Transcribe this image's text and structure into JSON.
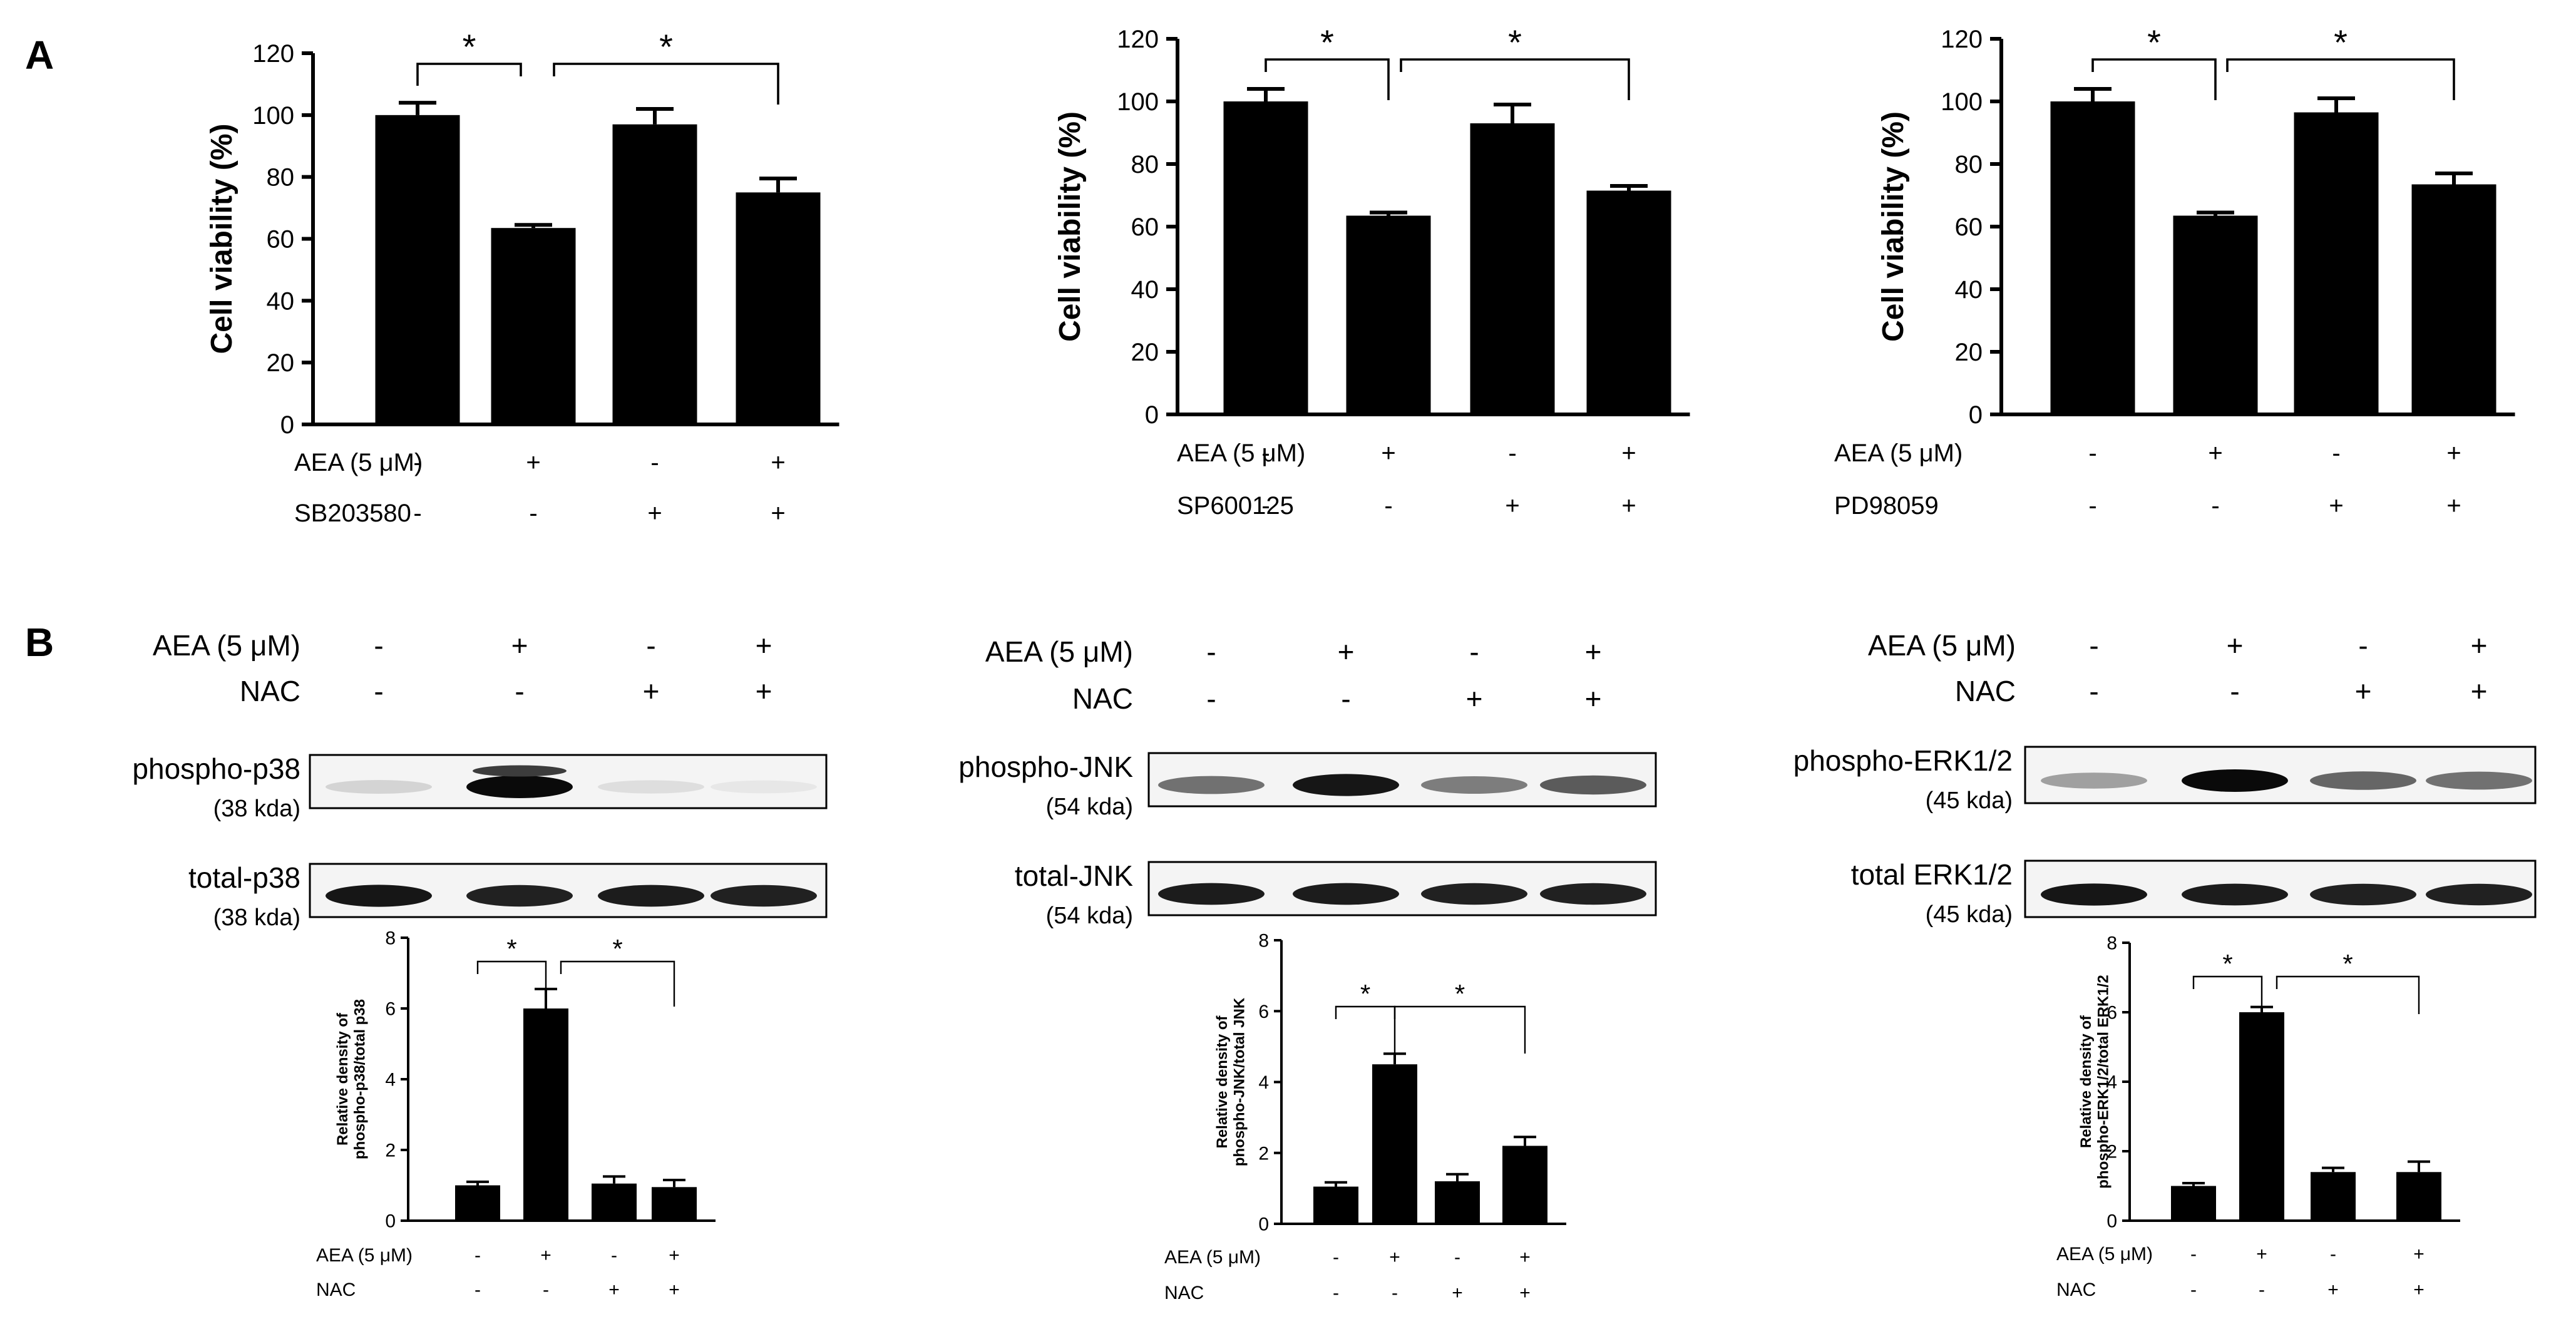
{
  "panels": {
    "A": "A",
    "B": "B"
  },
  "chart_data": [
    {
      "type": "bar",
      "ylabel": "Cell viability (%)",
      "ylim": [
        0,
        120
      ],
      "yticks": [
        "0",
        "20",
        "40",
        "60",
        "80",
        "100",
        "120"
      ],
      "values": [
        100,
        63.5,
        97,
        75
      ],
      "errors": [
        4,
        1,
        5,
        4.5
      ],
      "significance": [
        "*",
        "*"
      ],
      "conditions": [
        {
          "label": "AEA (5 μM)",
          "signs": [
            "-",
            "+",
            "-",
            "+"
          ]
        },
        {
          "label": "SB203580",
          "signs": [
            "-",
            "-",
            "+",
            "+"
          ]
        }
      ]
    },
    {
      "type": "bar",
      "ylabel": "Cell viability (%)",
      "ylim": [
        0,
        120
      ],
      "yticks": [
        "0",
        "20",
        "40",
        "60",
        "80",
        "100",
        "120"
      ],
      "values": [
        100,
        63.5,
        93,
        71.5
      ],
      "errors": [
        4,
        1,
        6,
        1.5
      ],
      "significance": [
        "*",
        "*"
      ],
      "conditions": [
        {
          "label": "AEA (5 μM)",
          "signs": [
            "-",
            "+",
            "-",
            "+"
          ]
        },
        {
          "label": "SP600125",
          "signs": [
            "-",
            "-",
            "+",
            "+"
          ]
        }
      ]
    },
    {
      "type": "bar",
      "ylabel": "Cell viability (%)",
      "ylim": [
        0,
        120
      ],
      "yticks": [
        "0",
        "20",
        "40",
        "60",
        "80",
        "100",
        "120"
      ],
      "values": [
        100,
        63.5,
        96.5,
        73.5
      ],
      "errors": [
        4,
        1,
        4.5,
        3.5
      ],
      "significance": [
        "*",
        "*"
      ],
      "conditions": [
        {
          "label": "AEA (5 μM)",
          "signs": [
            "-",
            "+",
            "-",
            "+"
          ]
        },
        {
          "label": "PD98059",
          "signs": [
            "-",
            "-",
            "+",
            "+"
          ]
        }
      ]
    },
    {
      "type": "bar",
      "ylabel": "Relative density of phospho-p38/total p38",
      "ylabel_lines": [
        "Relative density of",
        "phospho-p38/total p38"
      ],
      "ylim": [
        0,
        8
      ],
      "yticks": [
        "0",
        "2",
        "4",
        "6",
        "8"
      ],
      "values": [
        1,
        6,
        1.05,
        0.95
      ],
      "errors": [
        0.1,
        0.55,
        0.2,
        0.2
      ],
      "significance": [
        "*",
        "*"
      ],
      "conditions": [
        {
          "label": "AEA (5 μM)",
          "signs": [
            "-",
            "+",
            "-",
            "+"
          ]
        },
        {
          "label": "NAC",
          "signs": [
            "-",
            "-",
            "+",
            "+"
          ]
        }
      ]
    },
    {
      "type": "bar",
      "ylabel": "Relative density of phospho-JNK/total JNK",
      "ylabel_lines": [
        "Relative density of",
        "phospho-JNK/total JNK"
      ],
      "ylim": [
        0,
        8
      ],
      "yticks": [
        "0",
        "2",
        "4",
        "6",
        "8"
      ],
      "values": [
        1.05,
        4.5,
        1.2,
        2.2
      ],
      "errors": [
        0.12,
        0.3,
        0.2,
        0.25
      ],
      "significance": [
        "*",
        "*"
      ],
      "conditions": [
        {
          "label": "AEA (5 μM)",
          "signs": [
            "-",
            "+",
            "-",
            "+"
          ]
        },
        {
          "label": "NAC",
          "signs": [
            "-",
            "-",
            "+",
            "+"
          ]
        }
      ]
    },
    {
      "type": "bar",
      "ylabel": "Relative density of phospho-ERK1/2/total ERK1/2",
      "ylabel_lines": [
        "Relative density of",
        "phospho-ERK1/2/total ERK1/2"
      ],
      "ylim": [
        0,
        8
      ],
      "yticks": [
        "0",
        "2",
        "4",
        "6",
        "8"
      ],
      "values": [
        1,
        6,
        1.4,
        1.4
      ],
      "errors": [
        0.08,
        0.15,
        0.12,
        0.3
      ],
      "significance": [
        "*",
        "*"
      ],
      "conditions": [
        {
          "label": "AEA (5 μM)",
          "signs": [
            "-",
            "+",
            "-",
            "+"
          ]
        },
        {
          "label": "NAC",
          "signs": [
            "-",
            "-",
            "+",
            "+"
          ]
        }
      ]
    }
  ],
  "blots": [
    {
      "conditions": [
        {
          "label": "AEA (5 μM)",
          "signs": [
            "-",
            "+",
            "-",
            "+"
          ]
        },
        {
          "label": "NAC",
          "signs": [
            "-",
            "-",
            "+",
            "+"
          ]
        }
      ],
      "rows": [
        {
          "name": "phospho-p38",
          "size": "(38 kda)",
          "intensity": [
            0.12,
            1.0,
            0.08,
            0.04
          ],
          "double": true
        },
        {
          "name": "total-p38",
          "size": "(38 kda)",
          "intensity": [
            0.95,
            0.9,
            0.92,
            0.9
          ],
          "double": false
        }
      ]
    },
    {
      "conditions": [
        {
          "label": "AEA (5 μM)",
          "signs": [
            "-",
            "+",
            "-",
            "+"
          ]
        },
        {
          "label": "NAC",
          "signs": [
            "-",
            "-",
            "+",
            "+"
          ]
        }
      ],
      "rows": [
        {
          "name": "phospho-JNK",
          "size": "(54 kda)",
          "intensity": [
            0.55,
            0.95,
            0.5,
            0.65
          ],
          "double": false
        },
        {
          "name": "total-JNK",
          "size": "(54 kda)",
          "intensity": [
            0.92,
            0.92,
            0.9,
            0.9
          ],
          "double": false
        }
      ]
    },
    {
      "conditions": [
        {
          "label": "AEA (5 μM)",
          "signs": [
            "-",
            "+",
            "-",
            "+"
          ]
        },
        {
          "label": "NAC",
          "signs": [
            "-",
            "-",
            "+",
            "+"
          ]
        }
      ],
      "rows": [
        {
          "name": "phospho-ERK1/2",
          "size": "(45 kda)",
          "intensity": [
            0.35,
            1.0,
            0.6,
            0.55
          ],
          "double": false
        },
        {
          "name": "total ERK1/2",
          "size": "(45 kda)",
          "intensity": [
            0.95,
            0.92,
            0.9,
            0.9
          ],
          "double": false
        }
      ]
    }
  ]
}
